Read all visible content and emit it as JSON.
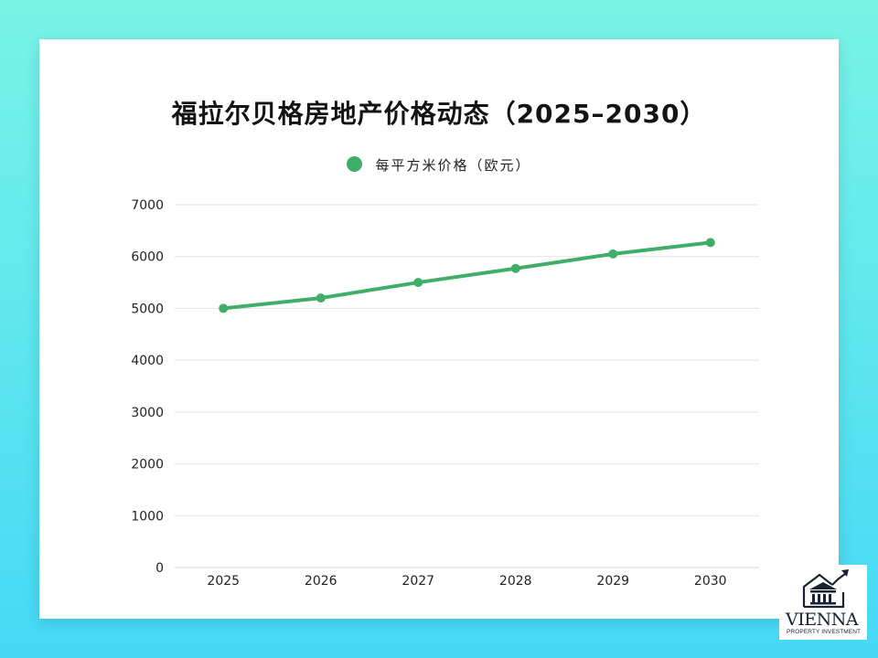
{
  "chart_data": {
    "type": "line",
    "title": "福拉尔贝格房地产价格动态（2025–2030）",
    "xlabel": "",
    "ylabel": "",
    "categories": [
      "2025",
      "2026",
      "2027",
      "2028",
      "2029",
      "2030"
    ],
    "series": [
      {
        "name": "每平方米价格（欧元）",
        "color": "#3fae68",
        "values": [
          5000,
          5200,
          5500,
          5770,
          6050,
          6270
        ]
      }
    ],
    "ylim": [
      0,
      7000
    ],
    "yticks": [
      0,
      1000,
      2000,
      3000,
      4000,
      5000,
      6000,
      7000
    ],
    "grid": true,
    "legend_position": "top"
  },
  "header": {
    "title": "福拉尔贝格房地产价格动态（2025–2030）"
  },
  "legend": {
    "label": "每平方米价格（欧元）",
    "color": "#3fae68"
  },
  "logo": {
    "name": "VIENNA",
    "subtitle": "PROPERTY INVESTMENT",
    "icon": "building-arrow-icon"
  },
  "colors": {
    "background_top": "#7af3e6",
    "background_bottom": "#45d8f6",
    "line": "#3fae68",
    "grid": "#e3e3e3"
  }
}
